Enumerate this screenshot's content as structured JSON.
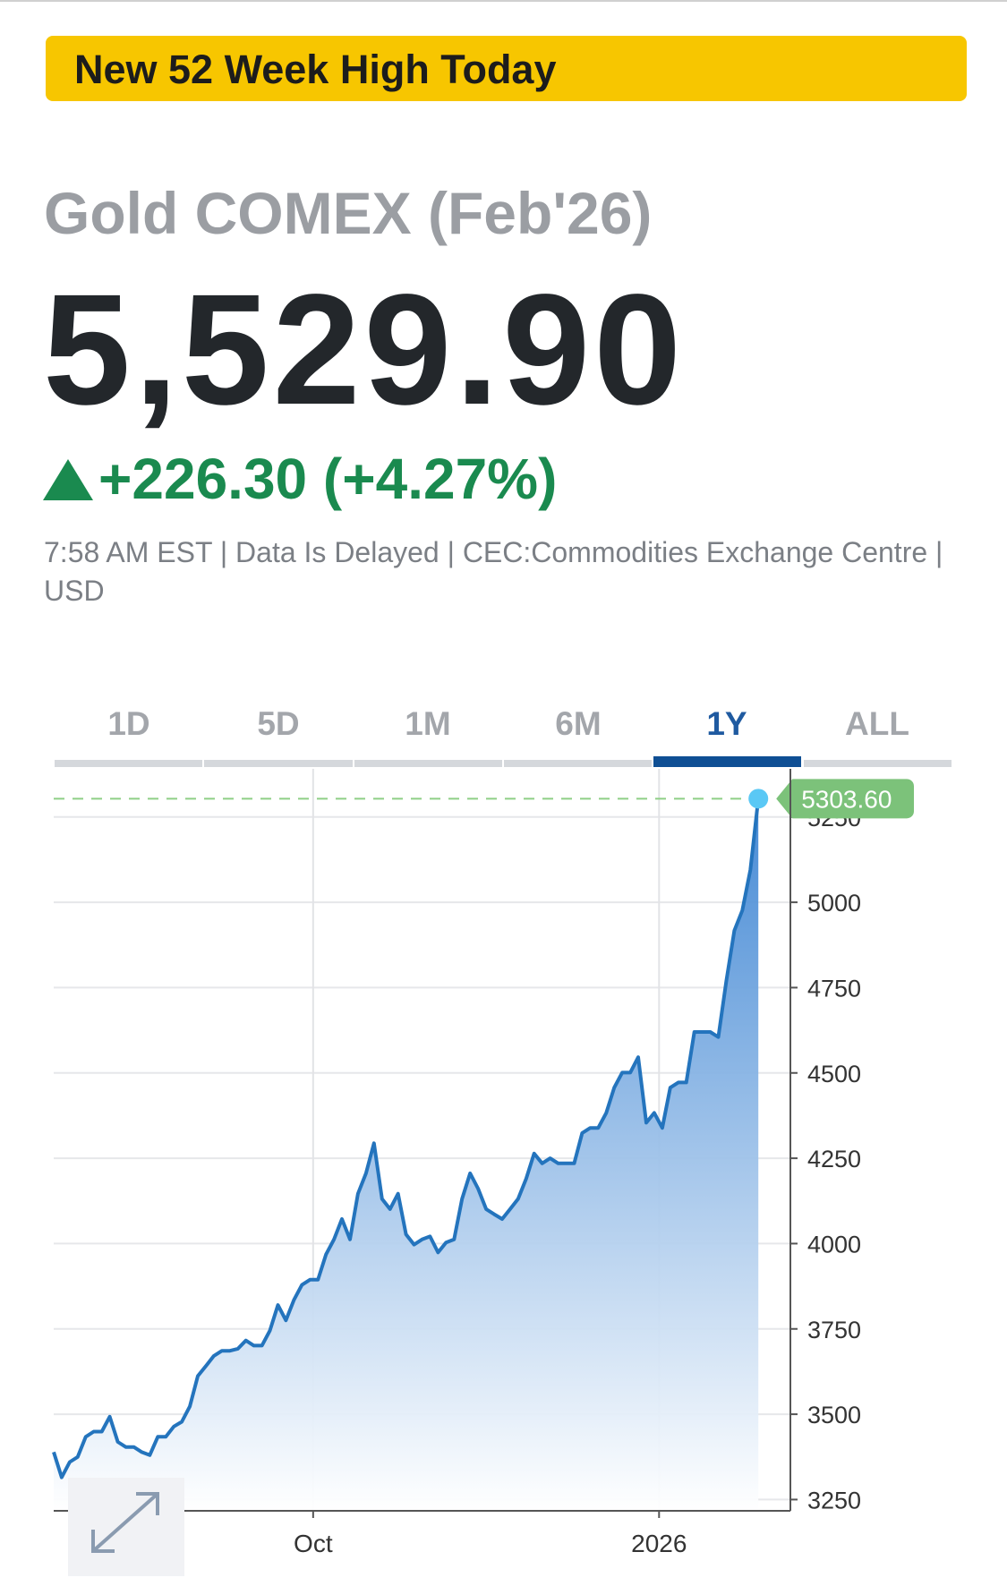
{
  "banner": "New 52 Week High Today",
  "quote": {
    "title": "Gold COMEX (Feb'26)",
    "price": "5,529.90",
    "change": "+226.30 (+4.27%)",
    "info": "7:58 AM EST | Data Is Delayed | CEC:Commodities Exchange Centre | USD"
  },
  "tabs": {
    "items": [
      "1D",
      "5D",
      "1M",
      "6M",
      "1Y",
      "ALL"
    ],
    "active": 4
  },
  "chart_data": {
    "type": "area",
    "series": [
      {
        "color": "#2474bd",
        "values": [
          3389,
          3315,
          3360,
          3375,
          3434,
          3449,
          3449,
          3493,
          3419,
          3404,
          3404,
          3389,
          3380,
          3434,
          3434,
          3464,
          3478,
          3523,
          3612,
          3641,
          3671,
          3686,
          3686,
          3692,
          3716,
          3701,
          3701,
          3745,
          3820,
          3775,
          3835,
          3879,
          3894,
          3894,
          3968,
          4012,
          4072,
          4012,
          4146,
          4206,
          4294,
          4131,
          4101,
          4146,
          4027,
          3997,
          4012,
          4021,
          3974,
          4003,
          4012,
          4131,
          4206,
          4161,
          4101,
          4086,
          4072,
          4101,
          4131,
          4190,
          4264,
          4235,
          4250,
          4235,
          4235,
          4235,
          4324,
          4339,
          4339,
          4383,
          4457,
          4501,
          4501,
          4546,
          4354,
          4383,
          4339,
          4457,
          4472,
          4472,
          4620,
          4620,
          4620,
          4605,
          4769,
          4917,
          4976,
          5095,
          5303.6
        ],
        "value_labels": [
          null,
          null,
          null,
          null,
          null,
          null,
          null,
          null,
          null,
          null,
          null,
          null,
          null,
          null,
          null,
          null,
          null,
          null,
          null,
          null,
          null,
          null,
          null,
          null,
          null,
          null,
          null,
          null,
          null,
          null,
          null,
          null,
          null,
          null,
          null,
          null,
          null,
          null,
          null,
          null,
          null,
          null,
          null,
          null,
          null,
          null,
          null,
          null,
          null,
          null,
          null,
          null,
          null,
          null,
          null,
          null,
          null,
          null,
          null,
          null,
          null,
          null,
          null,
          null,
          null,
          null,
          null,
          null,
          null,
          null,
          null,
          null,
          null,
          null,
          null,
          null,
          null,
          null,
          null,
          null,
          null,
          null,
          null,
          null,
          null,
          null,
          null,
          null,
          "5303.60"
        ]
      }
    ],
    "xlim": [
      0,
      92
    ],
    "xticks": [
      {
        "value": 32.4,
        "label": "Oct"
      },
      {
        "value": 75.6,
        "label": "2026"
      }
    ],
    "ylim": [
      3217,
      5391
    ],
    "yticks": [
      3250,
      3500,
      3750,
      4000,
      4250,
      4500,
      4750,
      5000,
      5250
    ],
    "grid": true
  }
}
